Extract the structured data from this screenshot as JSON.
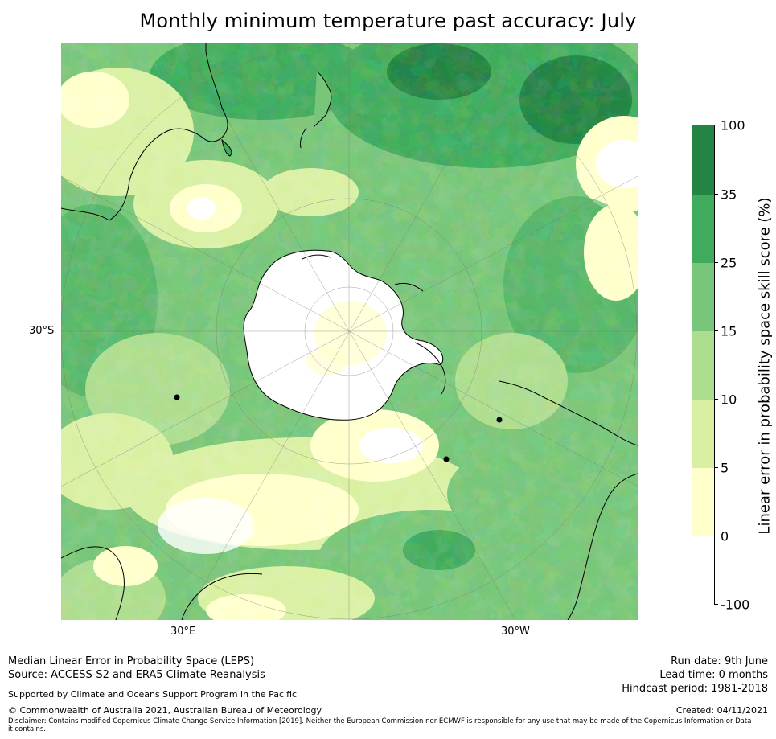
{
  "title": "Monthly minimum temperature past accuracy: July",
  "map": {
    "projection": "south-polar-stereographic",
    "lat_labels": [
      "30°S"
    ],
    "lon_labels": [
      "30°E",
      "30°W"
    ]
  },
  "colorbar": {
    "label": "Linear error in probability space skill score (%)",
    "ticks": [
      "100",
      "35",
      "25",
      "15",
      "10",
      "5",
      "0",
      "-100"
    ],
    "colors": [
      "#238443",
      "#41ab5d",
      "#78c679",
      "#addd8e",
      "#d9f0a3",
      "#ffffcc",
      "#ffffff"
    ],
    "bins": [
      {
        "from": 35,
        "to": 100,
        "color": "#238443"
      },
      {
        "from": 25,
        "to": 35,
        "color": "#41ab5d"
      },
      {
        "from": 15,
        "to": 25,
        "color": "#78c679"
      },
      {
        "from": 10,
        "to": 15,
        "color": "#addd8e"
      },
      {
        "from": 5,
        "to": 10,
        "color": "#d9f0a3"
      },
      {
        "from": 0,
        "to": 5,
        "color": "#ffffcc"
      },
      {
        "from": -100,
        "to": 0,
        "color": "#ffffff"
      }
    ]
  },
  "footer": {
    "method": "Median Linear Error in Probability Space (LEPS)",
    "source": "Source: ACCESS-S2 and ERA5 Climate Reanalysis",
    "support": "Supported by Climate and Oceans Support Program in the Pacific",
    "copyright": "© Commonwealth of Australia 2021, Australian Bureau of Meteorology",
    "disclaimer": "Disclaimer: Contains modified Copernicus Climate Change Service Information [2019]. Neither the European Commission nor ECMWF is responsible for any use that may be made of the Copernicus Information or Data it contains.",
    "run_date": "Run date: 9th June",
    "lead_time": "Lead time: 0 months",
    "hindcast": "Hindcast period: 1981-2018",
    "created": "Created: 04/11/2021"
  }
}
